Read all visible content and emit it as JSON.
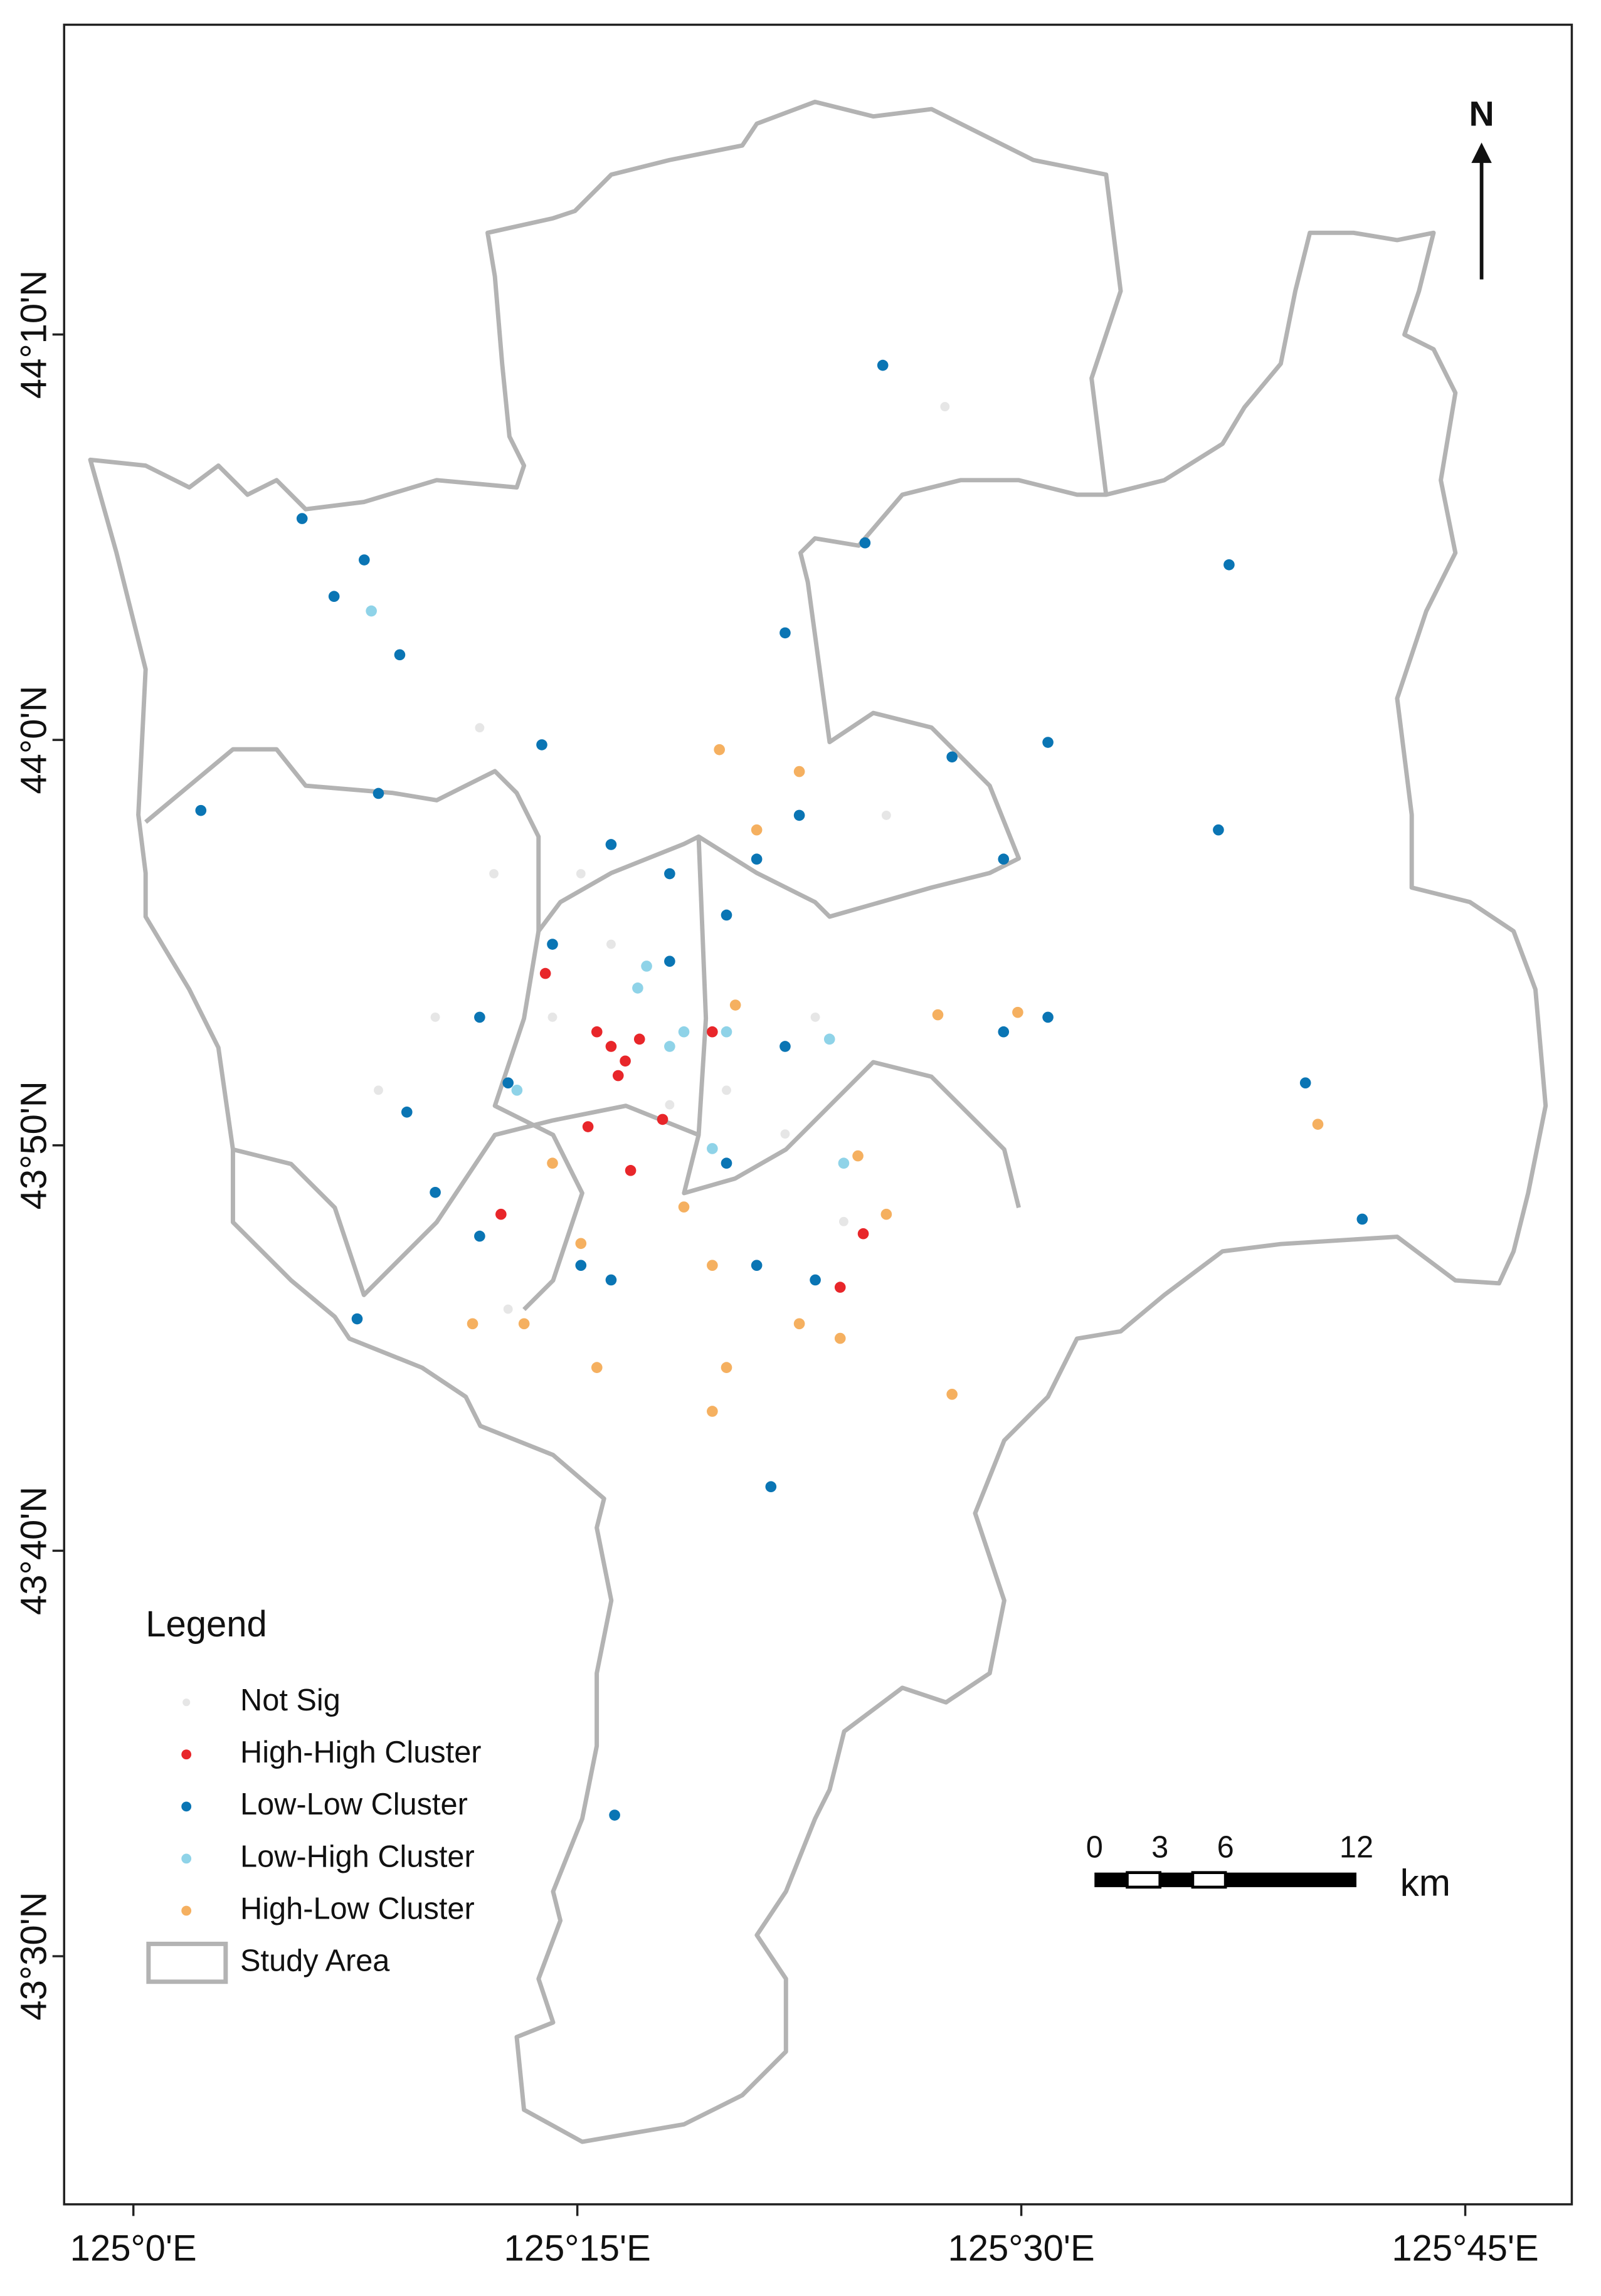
{
  "map": {
    "xlim": [
      124.961,
      125.81
    ],
    "ylim": [
      43.398,
      44.294
    ],
    "xticks": [
      {
        "value": 125.0,
        "label": "125°0'E"
      },
      {
        "value": 125.25,
        "label": "125°15'E"
      },
      {
        "value": 125.5,
        "label": "125°30'E"
      },
      {
        "value": 125.75,
        "label": "125°45'E"
      }
    ],
    "yticks": [
      {
        "value": 43.5,
        "label": "43°30'N"
      },
      {
        "value": 43.66667,
        "label": "43°40'N"
      },
      {
        "value": 43.83333,
        "label": "43°50'N"
      },
      {
        "value": 44.0,
        "label": "44°0'N"
      },
      {
        "value": 44.16667,
        "label": "44°10'N"
      }
    ],
    "legend_title": "Legend",
    "layers": [
      {
        "name": "Not Sig",
        "color": "#e6e6e6",
        "points": [
          [
            125.457,
            44.137
          ],
          [
            125.236,
            43.886
          ],
          [
            125.269,
            43.916
          ],
          [
            125.302,
            43.85
          ],
          [
            125.334,
            43.856
          ],
          [
            125.367,
            43.838
          ],
          [
            125.252,
            43.945
          ],
          [
            125.203,
            43.945
          ],
          [
            125.17,
            43.886
          ],
          [
            125.384,
            43.886
          ],
          [
            125.195,
            44.005
          ],
          [
            125.424,
            43.969
          ],
          [
            125.138,
            43.856
          ],
          [
            125.211,
            43.766
          ],
          [
            125.4,
            43.802
          ]
        ]
      },
      {
        "name": "High-High Cluster",
        "color": "#e8262a",
        "points": [
          [
            125.269,
            43.874
          ],
          [
            125.277,
            43.868
          ],
          [
            125.261,
            43.88
          ],
          [
            125.285,
            43.877
          ],
          [
            125.273,
            43.862
          ],
          [
            125.256,
            43.841
          ],
          [
            125.28,
            43.823
          ],
          [
            125.298,
            43.844
          ],
          [
            125.207,
            43.805
          ],
          [
            125.398,
            43.775
          ],
          [
            125.411,
            43.797
          ],
          [
            125.326,
            43.88
          ],
          [
            125.232,
            43.904
          ]
        ]
      },
      {
        "name": "Low-Low Cluster",
        "color": "#0a75b4",
        "points": [
          [
            125.422,
            44.154
          ],
          [
            125.095,
            44.091
          ],
          [
            125.617,
            44.072
          ],
          [
            125.13,
            44.074
          ],
          [
            125.113,
            44.059
          ],
          [
            125.15,
            44.035
          ],
          [
            125.367,
            44.044
          ],
          [
            125.412,
            44.081
          ],
          [
            125.515,
            43.999
          ],
          [
            125.461,
            43.993
          ],
          [
            125.611,
            43.963
          ],
          [
            125.038,
            43.971
          ],
          [
            125.138,
            43.978
          ],
          [
            125.23,
            43.998
          ],
          [
            125.269,
            43.957
          ],
          [
            125.302,
            43.945
          ],
          [
            125.334,
            43.928
          ],
          [
            125.351,
            43.951
          ],
          [
            125.375,
            43.969
          ],
          [
            125.236,
            43.916
          ],
          [
            125.195,
            43.886
          ],
          [
            125.154,
            43.847
          ],
          [
            125.17,
            43.814
          ],
          [
            125.195,
            43.796
          ],
          [
            125.252,
            43.784
          ],
          [
            125.269,
            43.778
          ],
          [
            125.351,
            43.784
          ],
          [
            125.367,
            43.874
          ],
          [
            125.49,
            43.88
          ],
          [
            125.515,
            43.886
          ],
          [
            125.66,
            43.859
          ],
          [
            125.692,
            43.803
          ],
          [
            125.271,
            43.558
          ],
          [
            125.359,
            43.693
          ],
          [
            125.126,
            43.762
          ],
          [
            125.211,
            43.859
          ],
          [
            125.302,
            43.909
          ],
          [
            125.334,
            43.826
          ],
          [
            125.384,
            43.778
          ],
          [
            125.49,
            43.951
          ]
        ]
      },
      {
        "name": "Low-High Cluster",
        "color": "#8fd3e8",
        "points": [
          [
            125.134,
            44.053
          ],
          [
            125.284,
            43.898
          ],
          [
            125.289,
            43.907
          ],
          [
            125.302,
            43.874
          ],
          [
            125.334,
            43.88
          ],
          [
            125.392,
            43.877
          ],
          [
            125.326,
            43.832
          ],
          [
            125.4,
            43.826
          ],
          [
            125.216,
            43.856
          ],
          [
            125.31,
            43.88
          ]
        ]
      },
      {
        "name": "High-Low Cluster",
        "color": "#f5b060",
        "points": [
          [
            125.33,
            43.996
          ],
          [
            125.351,
            43.963
          ],
          [
            125.375,
            43.987
          ],
          [
            125.667,
            43.842
          ],
          [
            125.461,
            43.731
          ],
          [
            125.498,
            43.888
          ],
          [
            125.453,
            43.887
          ],
          [
            125.191,
            43.76
          ],
          [
            125.22,
            43.76
          ],
          [
            125.252,
            43.793
          ],
          [
            125.236,
            43.826
          ],
          [
            125.31,
            43.808
          ],
          [
            125.326,
            43.784
          ],
          [
            125.334,
            43.742
          ],
          [
            125.326,
            43.724
          ],
          [
            125.375,
            43.76
          ],
          [
            125.398,
            43.754
          ],
          [
            125.424,
            43.805
          ],
          [
            125.408,
            43.829
          ],
          [
            125.339,
            43.891
          ],
          [
            125.261,
            43.742
          ]
        ]
      }
    ],
    "boundary_name": "Study Area",
    "boundary_color": "#b3b3b3",
    "north": "N",
    "scale_bar": {
      "ticks": [
        0,
        3,
        6,
        12
      ],
      "unit": "km"
    }
  }
}
